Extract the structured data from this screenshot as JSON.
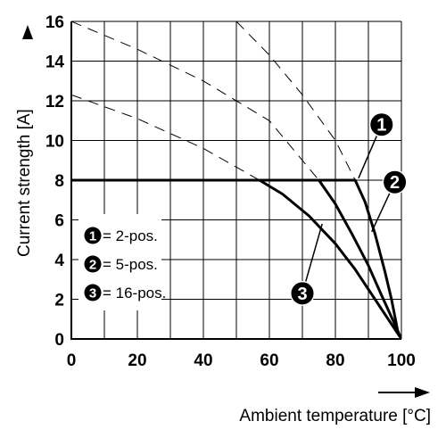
{
  "chart_data": {
    "type": "line",
    "title": "",
    "xlabel": "Ambient temperature [°C]",
    "ylabel": "Current strength [A]",
    "xlim": [
      0,
      100
    ],
    "ylim": [
      0,
      16
    ],
    "x_ticks": [
      "0",
      "20",
      "40",
      "60",
      "80",
      "100"
    ],
    "y_ticks": [
      "0",
      "2",
      "4",
      "6",
      "8",
      "10",
      "12",
      "14",
      "16"
    ],
    "grid": true,
    "legend_position": "bottom-left",
    "line_color": "#000000",
    "badge_color": "#000000",
    "series": [
      {
        "name": "2-pos.",
        "badge": "1",
        "style": "solid",
        "points": [
          [
            0,
            8
          ],
          [
            86,
            8
          ],
          [
            89,
            6.9
          ],
          [
            92,
            5.3
          ],
          [
            95,
            3.4
          ],
          [
            97,
            2
          ],
          [
            99,
            0.3
          ],
          [
            100,
            0
          ]
        ]
      },
      {
        "name": "5-pos.",
        "badge": "2",
        "style": "solid",
        "points": [
          [
            0,
            8
          ],
          [
            75,
            8
          ],
          [
            80,
            6.8
          ],
          [
            85,
            5.3
          ],
          [
            90,
            3.7
          ],
          [
            94,
            2.2
          ],
          [
            97,
            1.1
          ],
          [
            100,
            0
          ]
        ]
      },
      {
        "name": "16-pos.",
        "badge": "3",
        "style": "solid",
        "points": [
          [
            0,
            8
          ],
          [
            57,
            8
          ],
          [
            64,
            7.3
          ],
          [
            72,
            6.2
          ],
          [
            80,
            4.8
          ],
          [
            86,
            3.5
          ],
          [
            92,
            2
          ],
          [
            96,
            1
          ],
          [
            100,
            0
          ]
        ]
      },
      {
        "name": "",
        "badge": "1",
        "style": "dashed",
        "points": [
          [
            50,
            16
          ],
          [
            60,
            14.3
          ],
          [
            70,
            12.3
          ],
          [
            80,
            10
          ],
          [
            86,
            8
          ]
        ]
      },
      {
        "name": "",
        "badge": "2",
        "style": "dashed",
        "points": [
          [
            0,
            16
          ],
          [
            20,
            14.6
          ],
          [
            40,
            13
          ],
          [
            60,
            11
          ],
          [
            75,
            8
          ]
        ]
      },
      {
        "name": "",
        "badge": "3",
        "style": "dashed",
        "points": [
          [
            0,
            12.3
          ],
          [
            20,
            11.1
          ],
          [
            40,
            9.6
          ],
          [
            57,
            8
          ]
        ]
      }
    ],
    "legend": [
      {
        "badge": "1",
        "label": "= 2-pos."
      },
      {
        "badge": "2",
        "label": "= 5-pos."
      },
      {
        "badge": "3",
        "label": "= 16-pos."
      }
    ],
    "callouts": [
      {
        "label": "1",
        "target": [
          87,
          8.1
        ],
        "anchor": [
          94,
          10.8
        ]
      },
      {
        "label": "2",
        "target": [
          91,
          5.4
        ],
        "anchor": [
          98,
          7.9
        ]
      },
      {
        "label": "3",
        "target": [
          76,
          5.8
        ],
        "anchor": [
          70,
          2.3
        ]
      }
    ]
  }
}
